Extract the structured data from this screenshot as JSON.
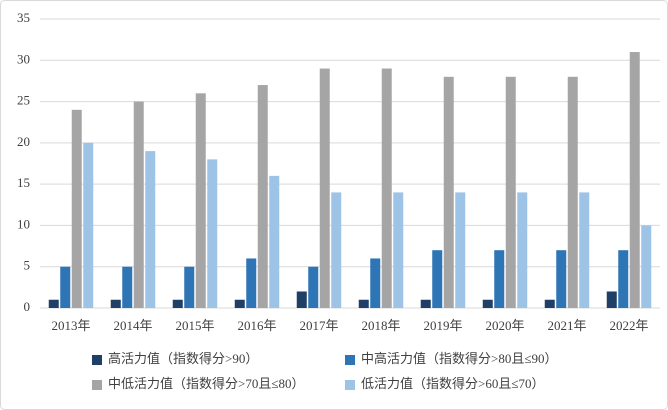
{
  "chart_data": {
    "type": "bar",
    "categories": [
      "2013年",
      "2014年",
      "2015年",
      "2016年",
      "2017年",
      "2018年",
      "2019年",
      "2020年",
      "2021年",
      "2022年"
    ],
    "series": [
      {
        "name": "高活力值（指数得分>90）",
        "color": "#1f3f66",
        "values": [
          1,
          1,
          1,
          1,
          2,
          1,
          1,
          1,
          1,
          2
        ]
      },
      {
        "name": "中高活力值（指数得分>80且≤90）",
        "color": "#2e75b6",
        "values": [
          5,
          5,
          5,
          6,
          5,
          6,
          7,
          7,
          7,
          7
        ]
      },
      {
        "name": "中低活力值（指数得分>70且≤80）",
        "color": "#a5a5a5",
        "values": [
          24,
          25,
          26,
          27,
          29,
          29,
          28,
          28,
          28,
          31
        ]
      },
      {
        "name": "低活力值（指数得分>60且≤70）",
        "color": "#9dc3e6",
        "values": [
          20,
          19,
          18,
          16,
          14,
          14,
          14,
          14,
          14,
          10
        ]
      }
    ],
    "ylim": [
      0,
      35
    ],
    "yticks": [
      0,
      5,
      10,
      15,
      20,
      25,
      30,
      35
    ],
    "grid": true,
    "legend": "bottom"
  }
}
